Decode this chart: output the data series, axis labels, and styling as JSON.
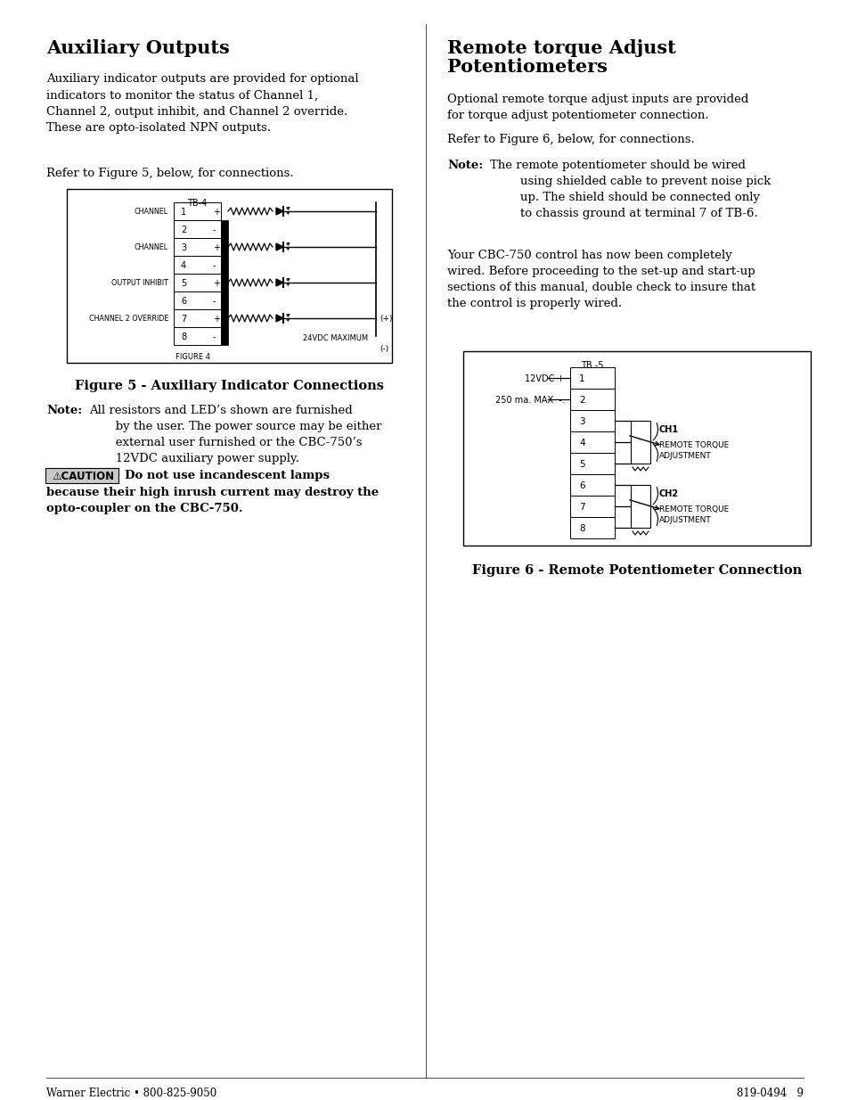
{
  "bg_color": "#ffffff",
  "page_width": 9.54,
  "page_height": 12.35,
  "left_col_title": "Auxiliary Outputs",
  "left_col_para1": "Auxiliary indicator outputs are provided for optional\nindicators to monitor the status of Channel 1,\nChannel 2, output inhibit, and Channel 2 override.\nThese are opto-isolated NPN outputs.",
  "left_col_refer": "Refer to Figure 5, below, for connections.",
  "fig5_caption": "Figure 5 - Auxiliary Indicator Connections",
  "note1_bold": "Note:",
  "note1_text_main": "All resistors and LED’s shown are furnished\n       by the user. The power source may be either\n       external user furnished or the CBC-750’s\n       12VDC auxiliary power supply.",
  "caution_label": "⚠CAUTION",
  "caution_text_inline": "Do not use incandescent lamps",
  "caution_text_bold": "because their high inrush current may destroy the\nopto-coupler on the CBC-750.",
  "right_col_title_line1": "Remote torque Adjust",
  "right_col_title_line2": "Potentiometers",
  "right_col_para1": "Optional remote torque adjust inputs are provided\nfor torque adjust potentiometer connection.",
  "right_col_refer": "Refer to Figure 6, below, for connections.",
  "note2_bold": "Note:",
  "note2_text": "The remote potentiometer should be wired\n        using shielded cable to prevent noise pick\n        up. The shield should be connected only\n        to chassis ground at terminal 7 of TB-6.",
  "right_col_para2": "Your CBC-750 control has now been completely\nwired. Before proceeding to the set-up and start-up\nsections of this manual, double check to insure that\nthe control is properly wired.",
  "fig6_caption": "Figure 6 - Remote Potentiometer Connection",
  "footer_left": "Warner Electric • 800-825-9050",
  "footer_right": "819-0494   9"
}
